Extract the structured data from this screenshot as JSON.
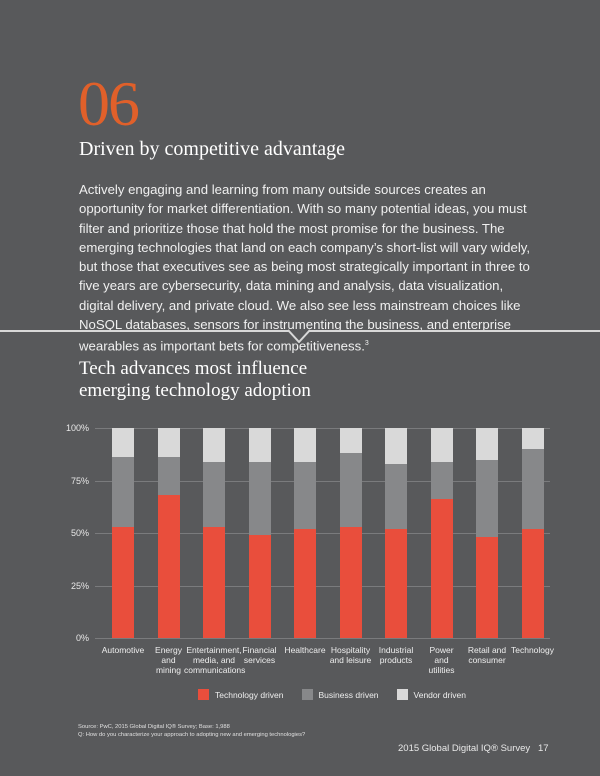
{
  "section": {
    "number": "06",
    "title": "Driven by competitive advantage",
    "body": "Actively engaging and learning from many outside sources creates an opportunity for market differentiation. With so many potential ideas, you must filter and prioritize those that hold the most promise for the business. The emerging technologies that land on each company’s short-list will vary widely, but those that executives see as being most strategically important in three to five years are cybersecurity, data mining and analysis, data visualization, digital delivery, and private cloud. We also see less mainstream choices like NoSQL databases, sensors for instrumenting the business, and enterprise wearables as important bets for competitiveness.",
    "footnote_ref": "3"
  },
  "colors": {
    "background": "#58595b",
    "technology": "#e94e3c",
    "business": "#87888a",
    "vendor": "#d9d9d9",
    "accent": "#e0602a"
  },
  "chart_data": {
    "type": "bar",
    "stacked": true,
    "title": "Tech advances most influence emerging technology adoption",
    "xlabel": "",
    "ylabel": "",
    "ylim": [
      0,
      100
    ],
    "yticks": [
      "0%",
      "25%",
      "50%",
      "75%",
      "100%"
    ],
    "grid": true,
    "legend_position": "bottom",
    "categories": [
      "Automotive",
      "Energy and mining",
      "Entertainment, media, and communications",
      "Financial services",
      "Healthcare",
      "Hospitality and leisure",
      "Industrial products",
      "Power and utilities",
      "Retail and consumer",
      "Technology"
    ],
    "series": [
      {
        "name": "Technology driven",
        "values": [
          53,
          68,
          53,
          49,
          52,
          53,
          52,
          66,
          48,
          52
        ]
      },
      {
        "name": "Business driven",
        "values": [
          33,
          18,
          31,
          35,
          32,
          35,
          31,
          18,
          37,
          38
        ]
      },
      {
        "name": "Vendor driven",
        "values": [
          14,
          14,
          16,
          16,
          16,
          12,
          17,
          16,
          15,
          10
        ]
      }
    ]
  },
  "chart_labels": {
    "title_line1": "Tech advances most influence",
    "title_line2": "emerging technology adoption",
    "xlabels": [
      [
        "Automotive"
      ],
      [
        "Energy",
        "and",
        "mining"
      ],
      [
        "Entertainment,",
        "media, and",
        "communications"
      ],
      [
        "Financial",
        "services"
      ],
      [
        "Healthcare"
      ],
      [
        "Hospitality",
        "and leisure"
      ],
      [
        "Industrial",
        "products"
      ],
      [
        "Power",
        "and",
        "utilities"
      ],
      [
        "Retail and",
        "consumer"
      ],
      [
        "Technology"
      ]
    ],
    "legend": [
      "Technology driven",
      "Business driven",
      "Vendor driven"
    ]
  },
  "source": {
    "line1": "Source: PwC, 2015 Global Digital IQ® Survey; Base: 1,988",
    "line2": "Q: How do you characterize your approach to adopting new and emerging technologies?"
  },
  "footer": {
    "publication": "2015 Global Digital IQ® Survey",
    "page": "17"
  }
}
